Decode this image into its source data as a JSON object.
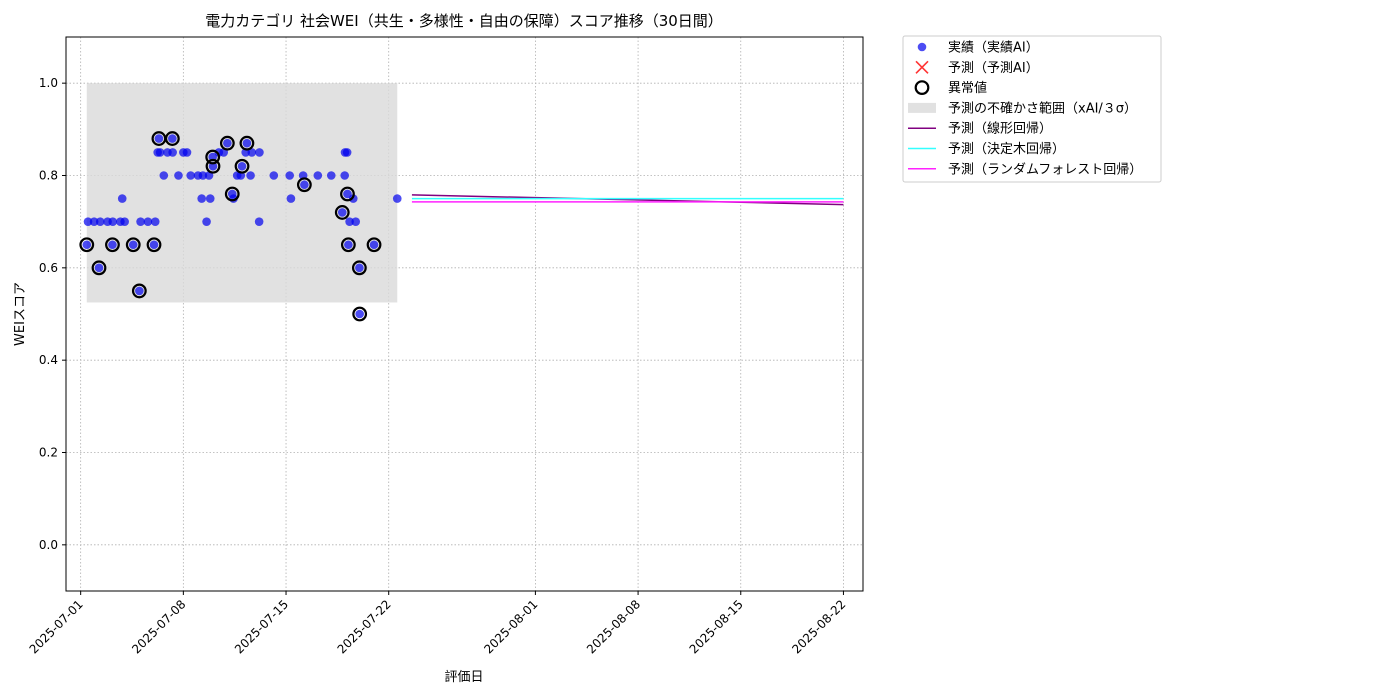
{
  "chart_data": {
    "type": "scatter",
    "title": "電力カテゴリ 社会WEI（共生・多様性・自由の保障）スコア推移（30日間）",
    "xlabel": "評価日",
    "ylabel": "WEIスコア",
    "xlim": [
      "2025-06-30T00:00",
      "2025-08-23T08:00"
    ],
    "ylim": [
      -0.1,
      1.1
    ],
    "x_ticks": [
      "2025-07-01",
      "2025-07-08",
      "2025-07-15",
      "2025-07-22",
      "2025-08-01",
      "2025-08-08",
      "2025-08-15",
      "2025-08-22"
    ],
    "y_ticks": [
      "0.0",
      "0.2",
      "0.4",
      "0.6",
      "0.8",
      "1.0"
    ],
    "grid": true,
    "legend_position": "outside-upper-right",
    "colors": {
      "actual": "#0000ee",
      "predicted": "#ff3333",
      "anomaly": "#000000",
      "uncertainty": "#d9d9d9",
      "linear": "#800080",
      "tree": "#33ffff",
      "forest": "#ff22ff"
    },
    "legend": [
      {
        "key": "actual",
        "label": "実績（実績AI）",
        "marker": "dot"
      },
      {
        "key": "predicted",
        "label": "予測（予測AI）",
        "marker": "x"
      },
      {
        "key": "anomaly",
        "label": "異常値",
        "marker": "ring"
      },
      {
        "key": "uncertainty",
        "label": "予測の不確かさ範囲（xAI/３σ）",
        "marker": "box"
      },
      {
        "key": "linear",
        "label": "予測（線形回帰）",
        "marker": "line"
      },
      {
        "key": "tree",
        "label": "予測（決定木回帰）",
        "marker": "line"
      },
      {
        "key": "forest",
        "label": "予測（ランダムフォレスト回帰）",
        "marker": "line"
      }
    ],
    "uncertainty_band": {
      "x": [
        "2025-07-01T10:00",
        "2025-07-22T14:00"
      ],
      "y": [
        0.525,
        1.0
      ]
    },
    "actual": [
      [
        "2025-07-01T10:00",
        0.65
      ],
      [
        "2025-07-01T12:00",
        0.7
      ],
      [
        "2025-07-01T22:00",
        0.7
      ],
      [
        "2025-07-02T06:00",
        0.6
      ],
      [
        "2025-07-02T08:00",
        0.7
      ],
      [
        "2025-07-02T20:00",
        0.7
      ],
      [
        "2025-07-03T04:00",
        0.65
      ],
      [
        "2025-07-03T04:30",
        0.7
      ],
      [
        "2025-07-03T17:00",
        0.7
      ],
      [
        "2025-07-03T20:00",
        0.75
      ],
      [
        "2025-07-04T00:00",
        0.7
      ],
      [
        "2025-07-04T14:00",
        0.65
      ],
      [
        "2025-07-05T00:00",
        0.55
      ],
      [
        "2025-07-05T02:00",
        0.7
      ],
      [
        "2025-07-05T14:00",
        0.7
      ],
      [
        "2025-07-06T00:00",
        0.65
      ],
      [
        "2025-07-06T02:00",
        0.7
      ],
      [
        "2025-07-06T06:00",
        0.85
      ],
      [
        "2025-07-06T08:00",
        0.88
      ],
      [
        "2025-07-06T10:00",
        0.85
      ],
      [
        "2025-07-06T16:00",
        0.8
      ],
      [
        "2025-07-06T22:00",
        0.85
      ],
      [
        "2025-07-07T06:00",
        0.88
      ],
      [
        "2025-07-07T06:30",
        0.85
      ],
      [
        "2025-07-07T16:00",
        0.8
      ],
      [
        "2025-07-08T00:00",
        0.85
      ],
      [
        "2025-07-08T06:00",
        0.85
      ],
      [
        "2025-07-08T12:00",
        0.8
      ],
      [
        "2025-07-09T00:00",
        0.8
      ],
      [
        "2025-07-09T06:00",
        0.75
      ],
      [
        "2025-07-09T08:00",
        0.8
      ],
      [
        "2025-07-09T14:00",
        0.7
      ],
      [
        "2025-07-09T18:00",
        0.8
      ],
      [
        "2025-07-09T20:00",
        0.75
      ],
      [
        "2025-07-10T00:00",
        0.84
      ],
      [
        "2025-07-10T00:30",
        0.82
      ],
      [
        "2025-07-10T10:00",
        0.85
      ],
      [
        "2025-07-10T18:00",
        0.85
      ],
      [
        "2025-07-11T00:00",
        0.87
      ],
      [
        "2025-07-11T08:00",
        0.76
      ],
      [
        "2025-07-11T10:00",
        0.75
      ],
      [
        "2025-07-11T16:00",
        0.8
      ],
      [
        "2025-07-11T22:00",
        0.8
      ],
      [
        "2025-07-12T00:00",
        0.82
      ],
      [
        "2025-07-12T06:00",
        0.85
      ],
      [
        "2025-07-12T08:00",
        0.87
      ],
      [
        "2025-07-12T14:00",
        0.8
      ],
      [
        "2025-07-12T16:00",
        0.85
      ],
      [
        "2025-07-13T04:00",
        0.7
      ],
      [
        "2025-07-13T04:30",
        0.85
      ],
      [
        "2025-07-14T04:00",
        0.8
      ],
      [
        "2025-07-15T06:00",
        0.8
      ],
      [
        "2025-07-15T08:00",
        0.75
      ],
      [
        "2025-07-16T04:00",
        0.8
      ],
      [
        "2025-07-16T06:00",
        0.78
      ],
      [
        "2025-07-17T04:00",
        0.8
      ],
      [
        "2025-07-18T02:00",
        0.8
      ],
      [
        "2025-07-18T20:00",
        0.72
      ],
      [
        "2025-07-19T00:00",
        0.8
      ],
      [
        "2025-07-19T00:30",
        0.85
      ],
      [
        "2025-07-19T04:00",
        0.85
      ],
      [
        "2025-07-19T04:30",
        0.76
      ],
      [
        "2025-07-19T06:00",
        0.65
      ],
      [
        "2025-07-19T08:00",
        0.7
      ],
      [
        "2025-07-19T14:00",
        0.75
      ],
      [
        "2025-07-19T18:00",
        0.7
      ],
      [
        "2025-07-20T00:00",
        0.6
      ],
      [
        "2025-07-20T00:30",
        0.5
      ],
      [
        "2025-07-21T00:00",
        0.65
      ],
      [
        "2025-07-22T14:00",
        0.75
      ]
    ],
    "anomalies": [
      [
        "2025-07-01T10:00",
        0.65
      ],
      [
        "2025-07-02T06:00",
        0.6
      ],
      [
        "2025-07-03T04:00",
        0.65
      ],
      [
        "2025-07-04T14:00",
        0.65
      ],
      [
        "2025-07-05T00:00",
        0.55
      ],
      [
        "2025-07-06T00:00",
        0.65
      ],
      [
        "2025-07-06T08:00",
        0.88
      ],
      [
        "2025-07-07T06:00",
        0.88
      ],
      [
        "2025-07-10T00:00",
        0.84
      ],
      [
        "2025-07-10T00:30",
        0.82
      ],
      [
        "2025-07-11T00:00",
        0.87
      ],
      [
        "2025-07-11T08:00",
        0.76
      ],
      [
        "2025-07-12T00:00",
        0.82
      ],
      [
        "2025-07-12T08:00",
        0.87
      ],
      [
        "2025-07-16T06:00",
        0.78
      ],
      [
        "2025-07-18T20:00",
        0.72
      ],
      [
        "2025-07-19T04:30",
        0.76
      ],
      [
        "2025-07-19T06:00",
        0.65
      ],
      [
        "2025-07-20T00:00",
        0.6
      ],
      [
        "2025-07-20T00:30",
        0.5
      ],
      [
        "2025-07-21T00:00",
        0.65
      ]
    ],
    "series": [
      {
        "key": "linear",
        "values": [
          [
            "2025-07-23T14:00",
            0.758
          ],
          [
            "2025-08-22T00:00",
            0.737
          ]
        ]
      },
      {
        "key": "tree",
        "values": [
          [
            "2025-07-23T14:00",
            0.75
          ],
          [
            "2025-08-22T00:00",
            0.75
          ]
        ]
      },
      {
        "key": "forest",
        "values": [
          [
            "2025-07-23T14:00",
            0.743
          ],
          [
            "2025-08-22T00:00",
            0.743
          ]
        ]
      }
    ]
  }
}
